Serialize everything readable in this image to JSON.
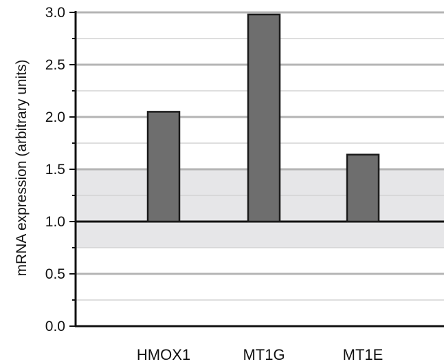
{
  "chart_data": {
    "type": "bar",
    "categories": [
      "HMOX1",
      "MT1G",
      "MT1E"
    ],
    "values": [
      2.05,
      2.98,
      1.64
    ],
    "xlabel": "",
    "ylabel": "mRNA expression (arbitrary units)",
    "ylim": [
      0,
      3.0
    ],
    "yticks": [
      "0.0",
      "0.5",
      "1.0",
      "1.5",
      "2.0",
      "2.5",
      "3.0"
    ],
    "minor_tick_step": 0.25,
    "baseline": 1.0,
    "shaded_band": [
      0.75,
      1.5
    ],
    "grid": true,
    "colors": {
      "bar_fill": "#6e6e6e",
      "bar_stroke": "#1a1a1a",
      "band": "#e6e6e8",
      "major_grid": "#b4b4b4",
      "minor_grid": "#d4d4d4",
      "axis": "#111111"
    }
  }
}
